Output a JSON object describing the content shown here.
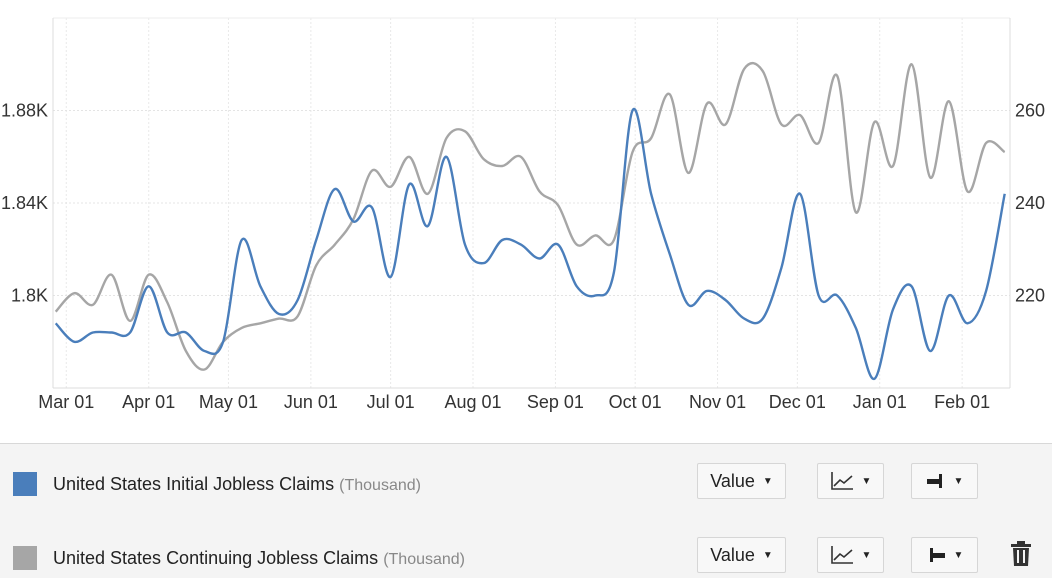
{
  "chart_data": {
    "type": "line",
    "x_ticks": [
      "Mar 01",
      "Apr 01",
      "May 01",
      "Jun 01",
      "Jul 01",
      "Aug 01",
      "Sep 01",
      "Oct 01",
      "Nov 01",
      "Dec 01",
      "Jan 01",
      "Feb 01"
    ],
    "y_left": {
      "ticks": [
        "1.8K",
        "1.84K",
        "1.88K"
      ],
      "tick_values": [
        1800,
        1840,
        1880
      ],
      "range": [
        1760,
        1920
      ]
    },
    "y_right": {
      "ticks": [
        "220",
        "240",
        "260"
      ],
      "tick_values": [
        220,
        240,
        260
      ],
      "range": [
        200,
        280
      ]
    },
    "grid": true,
    "series": [
      {
        "name": "United States Initial Jobless Claims",
        "unit": "(Thousand)",
        "axis": "right",
        "color": "#4a7ebb",
        "points": [
          [
            "2023-02-25",
            214
          ],
          [
            "2023-03-04",
            210
          ],
          [
            "2023-03-11",
            212
          ],
          [
            "2023-03-18",
            212
          ],
          [
            "2023-03-25",
            212
          ],
          [
            "2023-04-01",
            222
          ],
          [
            "2023-04-08",
            212
          ],
          [
            "2023-04-15",
            212
          ],
          [
            "2023-04-22",
            208
          ],
          [
            "2023-04-29",
            210
          ],
          [
            "2023-05-06",
            232
          ],
          [
            "2023-05-13",
            222
          ],
          [
            "2023-05-20",
            216
          ],
          [
            "2023-05-27",
            219
          ],
          [
            "2023-06-03",
            232
          ],
          [
            "2023-06-10",
            243
          ],
          [
            "2023-06-17",
            236
          ],
          [
            "2023-06-24",
            239
          ],
          [
            "2023-07-01",
            224
          ],
          [
            "2023-07-08",
            244
          ],
          [
            "2023-07-15",
            235
          ],
          [
            "2023-07-22",
            250
          ],
          [
            "2023-07-29",
            231
          ],
          [
            "2023-08-05",
            227
          ],
          [
            "2023-08-12",
            232
          ],
          [
            "2023-08-19",
            231
          ],
          [
            "2023-08-26",
            228
          ],
          [
            "2023-09-02",
            231
          ],
          [
            "2023-09-09",
            222
          ],
          [
            "2023-09-16",
            220
          ],
          [
            "2023-09-23",
            225
          ],
          [
            "2023-09-30",
            260
          ],
          [
            "2023-10-07",
            242
          ],
          [
            "2023-10-14",
            229
          ],
          [
            "2023-10-21",
            218
          ],
          [
            "2023-10-28",
            221
          ],
          [
            "2023-11-04",
            219
          ],
          [
            "2023-11-11",
            215
          ],
          [
            "2023-11-18",
            215
          ],
          [
            "2023-11-25",
            226
          ],
          [
            "2023-12-02",
            242
          ],
          [
            "2023-12-09",
            220
          ],
          [
            "2023-12-16",
            220
          ],
          [
            "2023-12-23",
            213
          ],
          [
            "2023-12-30",
            202
          ],
          [
            "2024-01-06",
            217
          ],
          [
            "2024-01-13",
            222
          ],
          [
            "2024-01-20",
            208
          ],
          [
            "2024-01-27",
            220
          ],
          [
            "2024-02-03",
            214
          ],
          [
            "2024-02-10",
            221
          ],
          [
            "2024-02-17",
            242
          ]
        ]
      },
      {
        "name": "United States Continuing Jobless Claims",
        "unit": "(Thousand)",
        "axis": "left",
        "color": "#a6a6a6",
        "points": [
          [
            "2023-02-25",
            1793
          ],
          [
            "2023-03-04",
            1801
          ],
          [
            "2023-03-11",
            1796
          ],
          [
            "2023-03-18",
            1809
          ],
          [
            "2023-03-25",
            1789
          ],
          [
            "2023-04-01",
            1809
          ],
          [
            "2023-04-08",
            1797
          ],
          [
            "2023-04-15",
            1776
          ],
          [
            "2023-04-22",
            1768
          ],
          [
            "2023-04-29",
            1780
          ],
          [
            "2023-05-06",
            1786
          ],
          [
            "2023-05-13",
            1788
          ],
          [
            "2023-05-20",
            1790
          ],
          [
            "2023-05-27",
            1791
          ],
          [
            "2023-06-03",
            1813
          ],
          [
            "2023-06-10",
            1822
          ],
          [
            "2023-06-17",
            1833
          ],
          [
            "2023-06-24",
            1854
          ],
          [
            "2023-07-01",
            1847
          ],
          [
            "2023-07-08",
            1860
          ],
          [
            "2023-07-15",
            1844
          ],
          [
            "2023-07-22",
            1868
          ],
          [
            "2023-07-29",
            1871
          ],
          [
            "2023-08-05",
            1859
          ],
          [
            "2023-08-12",
            1856
          ],
          [
            "2023-08-19",
            1860
          ],
          [
            "2023-08-26",
            1845
          ],
          [
            "2023-09-02",
            1839
          ],
          [
            "2023-09-09",
            1822
          ],
          [
            "2023-09-16",
            1826
          ],
          [
            "2023-09-23",
            1824
          ],
          [
            "2023-09-30",
            1862
          ],
          [
            "2023-10-07",
            1868
          ],
          [
            "2023-10-14",
            1887
          ],
          [
            "2023-10-21",
            1853
          ],
          [
            "2023-10-28",
            1883
          ],
          [
            "2023-11-04",
            1874
          ],
          [
            "2023-11-11",
            1898
          ],
          [
            "2023-11-18",
            1897
          ],
          [
            "2023-11-25",
            1874
          ],
          [
            "2023-12-02",
            1878
          ],
          [
            "2023-12-09",
            1866
          ],
          [
            "2023-12-16",
            1895
          ],
          [
            "2023-12-23",
            1836
          ],
          [
            "2023-12-30",
            1875
          ],
          [
            "2024-01-06",
            1856
          ],
          [
            "2024-01-13",
            1900
          ],
          [
            "2024-01-20",
            1851
          ],
          [
            "2024-01-27",
            1884
          ],
          [
            "2024-02-03",
            1845
          ],
          [
            "2024-02-10",
            1866
          ],
          [
            "2024-02-17",
            1862
          ]
        ]
      }
    ]
  },
  "legend": {
    "rows": [
      {
        "name": "United States Initial Jobless Claims",
        "unit": "(Thousand)",
        "color": "#4a7ebb",
        "value_label": "Value",
        "chart_type_icon": "line-chart-icon",
        "axis_icon": "right-axis-icon"
      },
      {
        "name": "United States Continuing Jobless Claims",
        "unit": "(Thousand)",
        "color": "#a6a6a6",
        "value_label": "Value",
        "chart_type_icon": "line-chart-icon",
        "axis_icon": "left-axis-icon",
        "delete_icon": "trash-icon"
      }
    ]
  }
}
